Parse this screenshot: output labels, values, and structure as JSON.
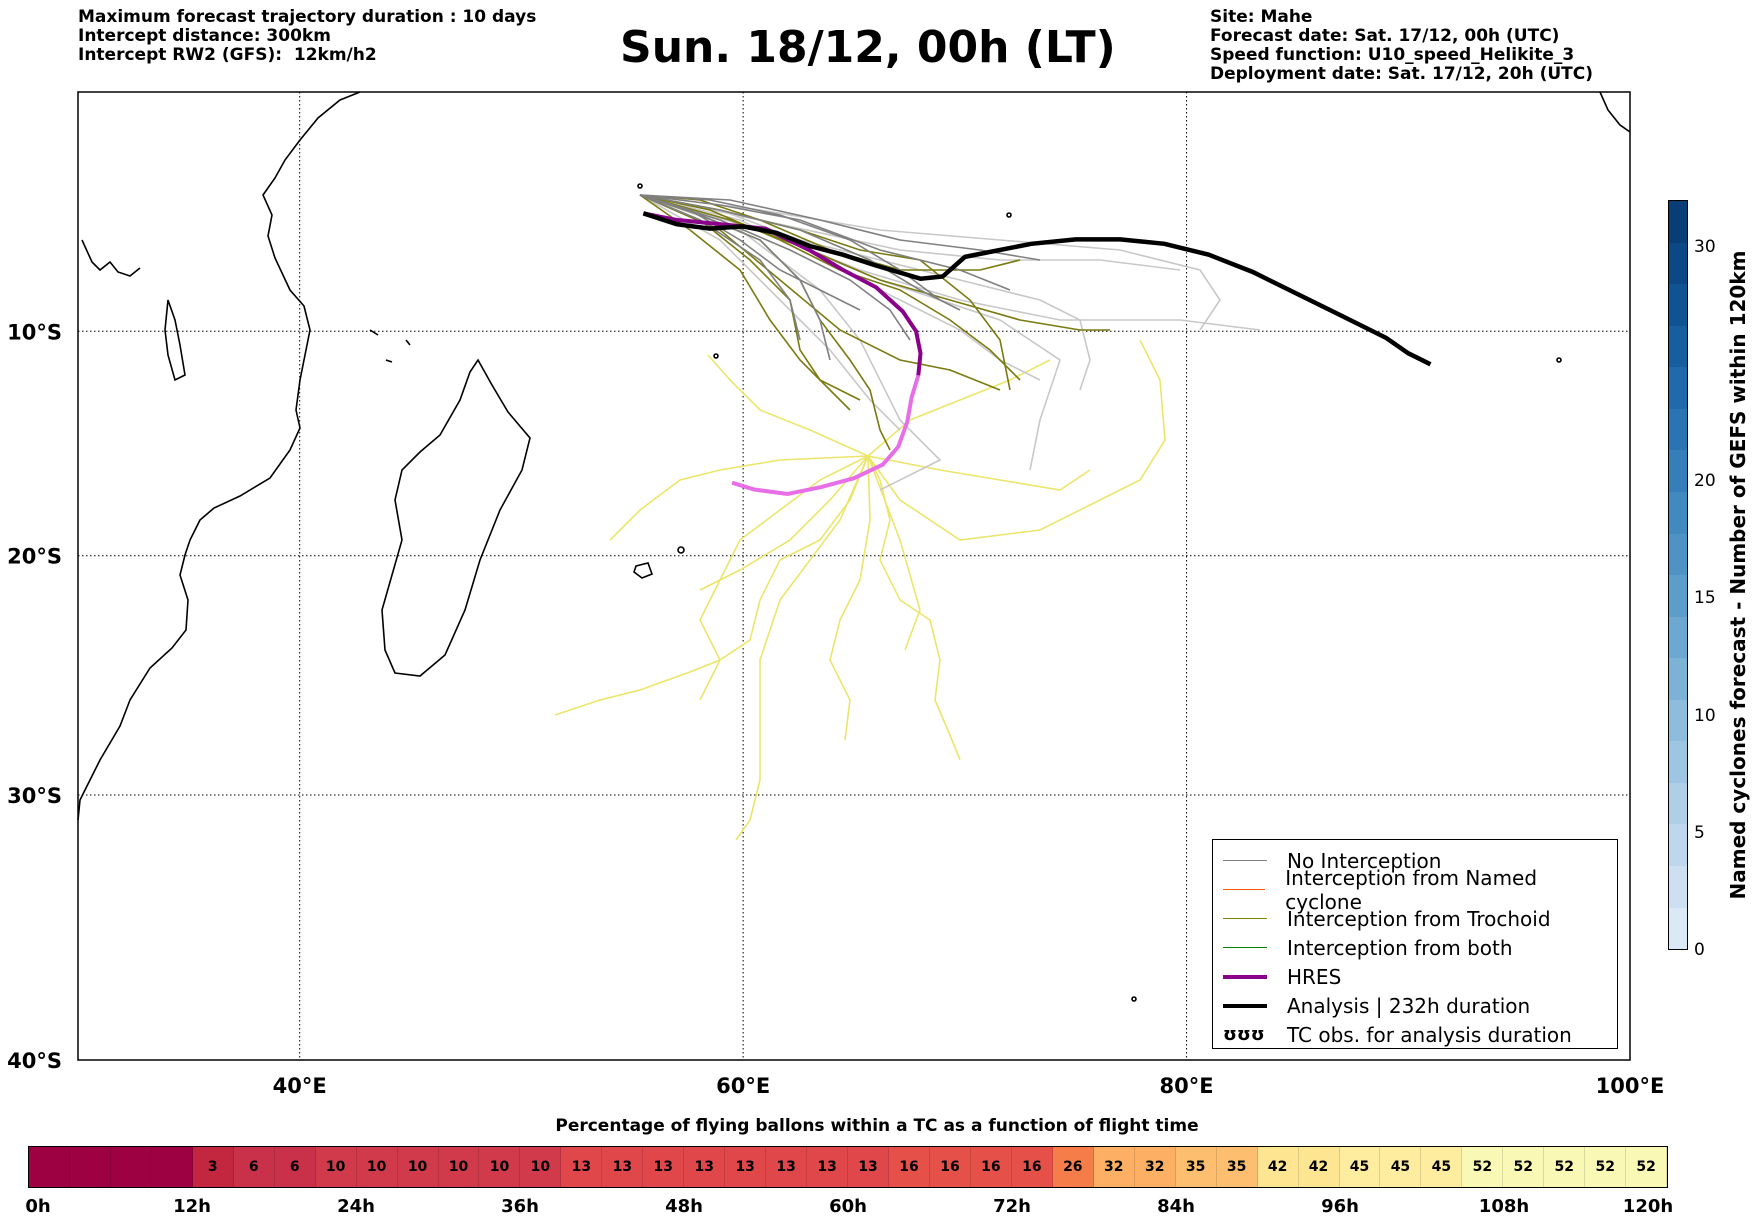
{
  "header_left": {
    "line1": "Maximum forecast trajectory duration : 10 days",
    "line2": "Intercept distance: 300km",
    "line3": "Intercept RW2 (GFS):  12km/h2"
  },
  "title": "Sun. 18/12, 00h (LT)",
  "header_right": {
    "line1": "Site: Mahe",
    "line2": "Forecast date: Sat. 17/12, 00h (UTC)",
    "line3": "Speed function: U10_speed_Helikite_3",
    "line4": "Deployment date: Sat. 17/12, 20h (UTC)"
  },
  "map": {
    "lon_ticks": [
      "40°E",
      "60°E",
      "80°E",
      "100°E"
    ],
    "lat_ticks": [
      "10°S",
      "20°S",
      "30°S",
      "40°S"
    ],
    "extent": {
      "lon": [
        30,
        100
      ],
      "lat": [
        -40,
        1
      ]
    }
  },
  "legend": [
    {
      "label": "No Interception",
      "color": "#808080",
      "kind": "line-thin"
    },
    {
      "label": "Interception from Named cyclone",
      "color": "#ff5500",
      "kind": "line-thin"
    },
    {
      "label": "Interception from Trochoid",
      "color": "#808000",
      "kind": "line-thin"
    },
    {
      "label": "Interception from both",
      "color": "#008000",
      "kind": "line-thin"
    },
    {
      "label": "HRES",
      "color": "#8b008b",
      "kind": "line-thick"
    },
    {
      "label": "Analysis | 232h duration",
      "color": "#000000",
      "kind": "line-thick"
    },
    {
      "label": "TC obs. for analysis duration",
      "color": "#000000",
      "kind": "symbol",
      "symbol": "ʊʊʊ"
    }
  ],
  "colorbar": {
    "title": "Named cyclones forecast - Number of GEFS within 120km",
    "ticks": [
      "0",
      "5",
      "10",
      "15",
      "20",
      "30"
    ],
    "colors": [
      "#dbe9f6",
      "#cde0f1",
      "#bed7ec",
      "#afcfe6",
      "#9ec5e1",
      "#8dbcdc",
      "#7db2d7",
      "#6da8d2",
      "#5d9dcb",
      "#4f93c5",
      "#4289c0",
      "#367eb9",
      "#2b74b2",
      "#2069aa",
      "#175e9f",
      "#105393",
      "#0b4885",
      "#083d76"
    ]
  },
  "percentage_bar": {
    "title": "Percentage of flying ballons within a TC as a function of flight time",
    "cells": [
      "",
      "",
      "",
      "",
      "3",
      "6",
      "6",
      "10",
      "10",
      "10",
      "10",
      "10",
      "10",
      "13",
      "13",
      "13",
      "13",
      "13",
      "13",
      "13",
      "13",
      "16",
      "16",
      "16",
      "16",
      "26",
      "32",
      "32",
      "35",
      "35",
      "42",
      "42",
      "45",
      "45",
      "45",
      "52",
      "52",
      "52",
      "52",
      "52"
    ],
    "cell_colors": [
      "#9e0142",
      "#9e0142",
      "#9e0142",
      "#9e0142",
      "#c2273f",
      "#c9304a",
      "#c9304a",
      "#d03a4b",
      "#d03a4b",
      "#d03a4b",
      "#d03a4b",
      "#d03a4b",
      "#d03a4b",
      "#e0474a",
      "#e0474a",
      "#e0474a",
      "#e0474a",
      "#e0474a",
      "#e0474a",
      "#e0474a",
      "#e0474a",
      "#e55048",
      "#e55048",
      "#e55048",
      "#e55048",
      "#f57d4a",
      "#fdb063",
      "#fdb063",
      "#fdbf6f",
      "#fdbf6f",
      "#fee591",
      "#fee591",
      "#feec9f",
      "#feec9f",
      "#feec9f",
      "#f9f8b4",
      "#f9f8b4",
      "#f9f8b4",
      "#f9f8b4",
      "#f9f8b4"
    ],
    "ticks": [
      "0h",
      "12h",
      "24h",
      "36h",
      "48h",
      "60h",
      "72h",
      "84h",
      "96h",
      "108h",
      "120h"
    ]
  },
  "tracks": {
    "analysis": {
      "lon": [
        55.5,
        57,
        58.5,
        60,
        61.5,
        63,
        64.5,
        66,
        67,
        68,
        69,
        70,
        71,
        73,
        75,
        77,
        79,
        81,
        83,
        85,
        87,
        89,
        90,
        91
      ],
      "lat": [
        -4.6,
        -5.1,
        -5.3,
        -5.2,
        -5.5,
        -6.1,
        -6.5,
        -7.0,
        -7.3,
        -7.6,
        -7.5,
        -6.6,
        -6.4,
        -6.0,
        -5.8,
        -5.8,
        -6.0,
        -6.5,
        -7.3,
        -8.3,
        -9.3,
        -10.3,
        -11.0,
        -11.5
      ]
    },
    "hres": {
      "lon": [
        55.5,
        57,
        59,
        61,
        63,
        64.5,
        66,
        67.2,
        67.8,
        68.0,
        67.9,
        67.6,
        67.4,
        67.0,
        66.3,
        65.0,
        63.5,
        62,
        60.5,
        59.5
      ],
      "lat": [
        -4.6,
        -4.9,
        -5.1,
        -5.3,
        -6.3,
        -7.2,
        -8.0,
        -9.1,
        -10.0,
        -11.0,
        -12.0,
        -13.0,
        -14.1,
        -15.2,
        -16.0,
        -16.6,
        -17.0,
        -17.3,
        -17.1,
        -16.8
      ]
    }
  }
}
